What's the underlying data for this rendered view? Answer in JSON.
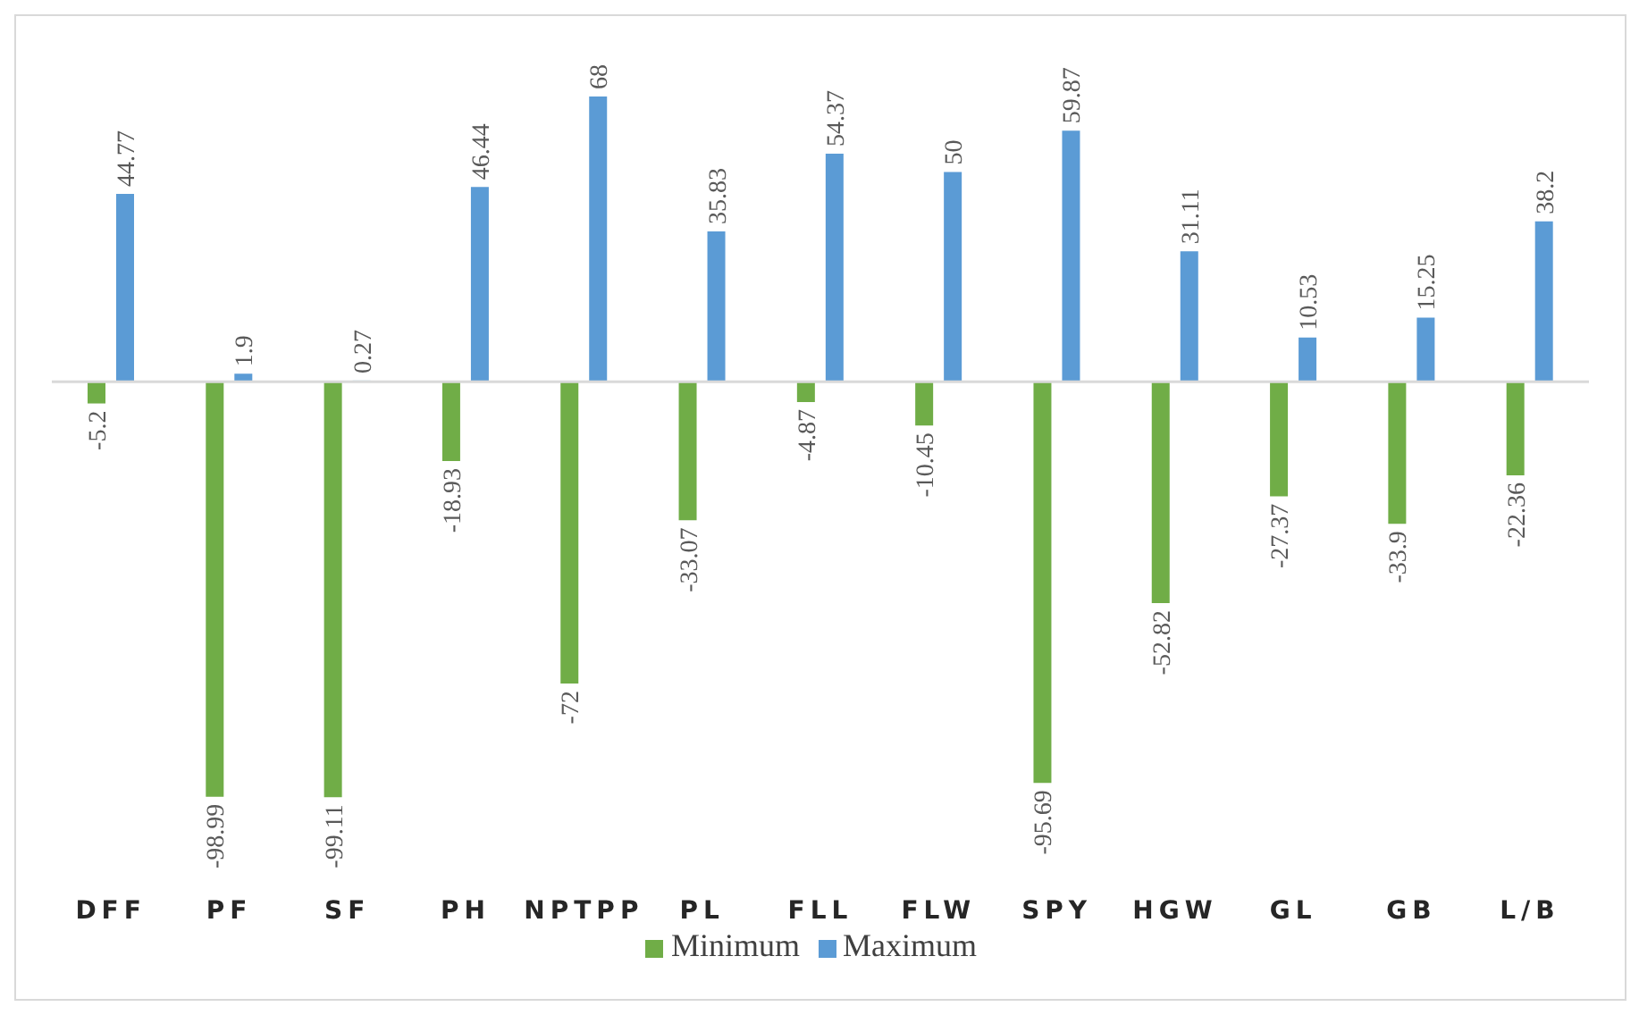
{
  "chart_data": {
    "type": "bar",
    "categories": [
      "DFF",
      "PF",
      "SF",
      "PH",
      "NPTPP",
      "PL",
      "FLL",
      "FLW",
      "SPY",
      "HGW",
      "GL",
      "GB",
      "L/B"
    ],
    "series": [
      {
        "name": "Minimum",
        "color": "#70ad47",
        "values": [
          -5.2,
          -98.99,
          -99.11,
          -18.93,
          -72,
          -33.07,
          -4.87,
          -10.45,
          -95.69,
          -52.82,
          -27.37,
          -33.9,
          -22.36
        ]
      },
      {
        "name": "Maximum",
        "color": "#5b9bd5",
        "values": [
          44.77,
          1.9,
          0.27,
          46.44,
          68,
          35.83,
          54.37,
          50,
          59.87,
          31.11,
          10.53,
          15.25,
          38.2
        ]
      }
    ],
    "data_labels": true,
    "legend": "bottom"
  }
}
